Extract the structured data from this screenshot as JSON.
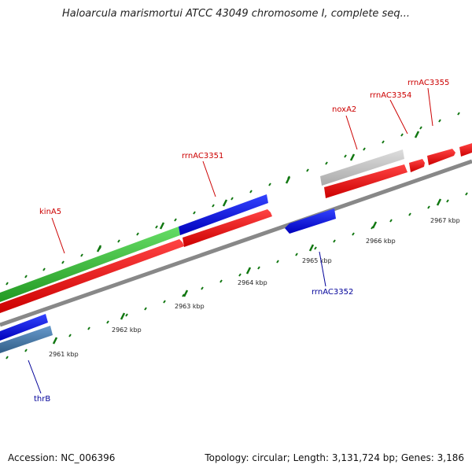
{
  "title": "Haloarcula marismortui ATCC 43049 chromosome I, complete seq...",
  "footer": {
    "accession": "Accession: NC_006396",
    "summary": "Topology: circular; Length: 3,131,724 bp; Genes: 3,186"
  },
  "genes": [
    {
      "name": "kinA5",
      "color": "#cc0000"
    },
    {
      "name": "rrnAC3351",
      "color": "#cc0000"
    },
    {
      "name": "noxA2",
      "color": "#cc0000"
    },
    {
      "name": "rrnAC3354",
      "color": "#cc0000"
    },
    {
      "name": "rrnAC3355",
      "color": "#cc0000"
    },
    {
      "name": "rrnAC3352",
      "color": "#000099"
    },
    {
      "name": "thrB",
      "color": "#000099"
    }
  ],
  "ticks": [
    "2961 kbp",
    "2962 kbp",
    "2963 kbp",
    "2964 kbp",
    "2965 kbp",
    "2966 kbp",
    "2967 kbp"
  ],
  "colors": {
    "backbone": "#888888",
    "forward_cds": "#ee0000",
    "reverse_cds": "#1111dd",
    "green_feature": "#33bb33",
    "gray_feature": "#bbbbbb",
    "steel_feature": "#4477aa",
    "tick": "#117711"
  }
}
